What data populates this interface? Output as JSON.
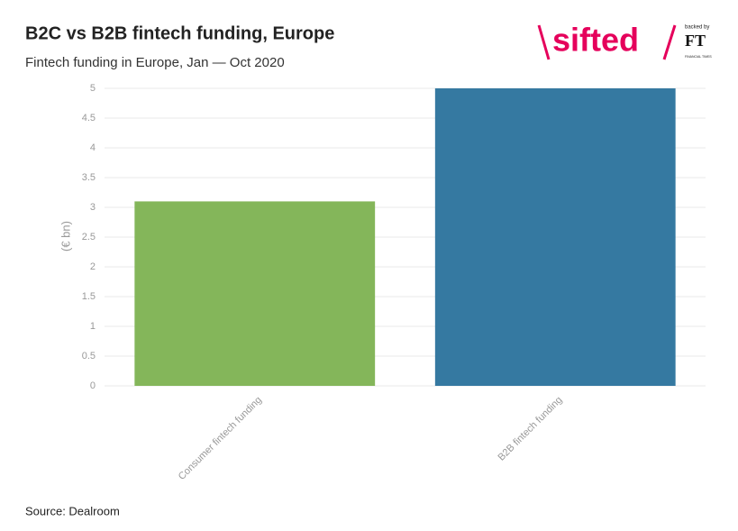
{
  "chart_data": {
    "type": "bar",
    "title": "B2C vs B2B fintech funding, Europe",
    "subtitle": "Fintech funding in Europe, Jan — Oct 2020",
    "y_label": "(€ bn)",
    "categories": [
      "Consumer fintech funding",
      "B2B fintech funding"
    ],
    "values": [
      3.1,
      5
    ],
    "colors": [
      "#84b65a",
      "#3579a1"
    ],
    "ylim": [
      0,
      5
    ],
    "yticks": [
      0,
      0.5,
      1,
      1.5,
      2,
      2.5,
      3,
      3.5,
      4,
      4.5,
      5
    ],
    "grid": true,
    "source": "Source: Dealroom",
    "logo": {
      "brand": "sifted",
      "backed_by": "backed by",
      "ft": "FT",
      "ft_name": "FINANCIAL TIMES"
    }
  }
}
